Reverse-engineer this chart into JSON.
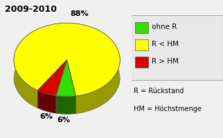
{
  "title": "2009-2010",
  "slices": [
    6,
    88,
    6
  ],
  "labels": [
    "6%",
    "88%",
    "6%"
  ],
  "colors": [
    "#33dd00",
    "#ffff00",
    "#dd0000"
  ],
  "dark_colors": [
    "#226600",
    "#999900",
    "#660000"
  ],
  "legend_labels": [
    "ohne R",
    "R < HM",
    "R > HM"
  ],
  "legend_colors": [
    "#33dd00",
    "#ffff00",
    "#dd0000"
  ],
  "legend_edge": "#888888",
  "note_line1": "R = Rückstand",
  "note_line2": "HM = Höchstmenge",
  "background_color": "#f0f0f0",
  "startangle": 270,
  "title_fontsize": 9,
  "label_fontsize": 8,
  "legend_fontsize": 7.5
}
